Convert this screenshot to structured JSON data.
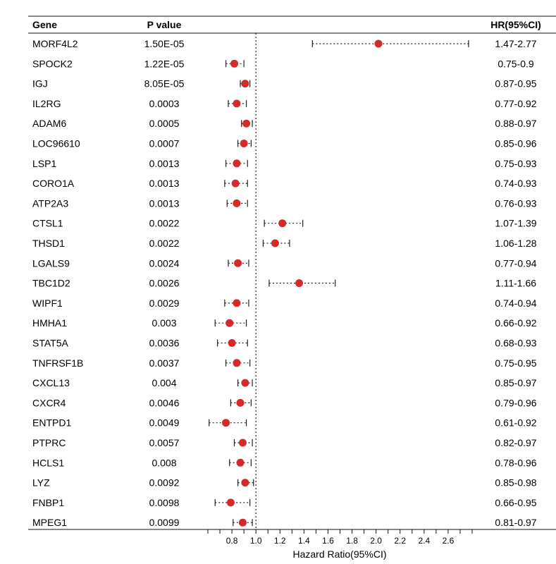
{
  "chart_data": {
    "type": "forest",
    "headers": {
      "gene": "Gene",
      "p": "P value",
      "hr": "HR(95%CI)"
    },
    "xlabel": "Hazard Ratio(95%CI)",
    "xticks": [
      "0.8",
      "1.0",
      "1.2",
      "1.4",
      "1.6",
      "1.8",
      "2.0",
      "2.2",
      "2.4",
      "2.6"
    ],
    "xlim": [
      0.6,
      2.8
    ],
    "reference_line": 1.0,
    "point_color": "#d42a2a",
    "rows": [
      {
        "gene": "MORF4L2",
        "p": "1.50E-05",
        "hr_text": "1.47-2.77",
        "hr": 2.02,
        "lo": 1.47,
        "hi": 2.77
      },
      {
        "gene": "SPOCK2",
        "p": "1.22E-05",
        "hr_text": "0.75-0.9",
        "hr": 0.82,
        "lo": 0.75,
        "hi": 0.9
      },
      {
        "gene": "IGJ",
        "p": "8.05E-05",
        "hr_text": "0.87-0.95",
        "hr": 0.91,
        "lo": 0.87,
        "hi": 0.95
      },
      {
        "gene": "IL2RG",
        "p": "0.0003",
        "hr_text": "0.77-0.92",
        "hr": 0.84,
        "lo": 0.77,
        "hi": 0.92
      },
      {
        "gene": "ADAM6",
        "p": "0.0005",
        "hr_text": "0.88-0.97",
        "hr": 0.92,
        "lo": 0.88,
        "hi": 0.97
      },
      {
        "gene": "LOC96610",
        "p": "0.0007",
        "hr_text": "0.85-0.96",
        "hr": 0.9,
        "lo": 0.85,
        "hi": 0.96
      },
      {
        "gene": "LSP1",
        "p": "0.0013",
        "hr_text": "0.75-0.93",
        "hr": 0.84,
        "lo": 0.75,
        "hi": 0.93
      },
      {
        "gene": "CORO1A",
        "p": "0.0013",
        "hr_text": "0.74-0.93",
        "hr": 0.83,
        "lo": 0.74,
        "hi": 0.93
      },
      {
        "gene": "ATP2A3",
        "p": "0.0013",
        "hr_text": "0.76-0.93",
        "hr": 0.84,
        "lo": 0.76,
        "hi": 0.93
      },
      {
        "gene": "CTSL1",
        "p": "0.0022",
        "hr_text": "1.07-1.39",
        "hr": 1.22,
        "lo": 1.07,
        "hi": 1.39
      },
      {
        "gene": "THSD1",
        "p": "0.0022",
        "hr_text": "1.06-1.28",
        "hr": 1.16,
        "lo": 1.06,
        "hi": 1.28
      },
      {
        "gene": "LGALS9",
        "p": "0.0024",
        "hr_text": "0.77-0.94",
        "hr": 0.85,
        "lo": 0.77,
        "hi": 0.94
      },
      {
        "gene": "TBC1D2",
        "p": "0.0026",
        "hr_text": "1.11-1.66",
        "hr": 1.36,
        "lo": 1.11,
        "hi": 1.66
      },
      {
        "gene": "WIPF1",
        "p": "0.0029",
        "hr_text": "0.74-0.94",
        "hr": 0.84,
        "lo": 0.74,
        "hi": 0.94
      },
      {
        "gene": "HMHA1",
        "p": "0.003",
        "hr_text": "0.66-0.92",
        "hr": 0.78,
        "lo": 0.66,
        "hi": 0.92
      },
      {
        "gene": "STAT5A",
        "p": "0.0036",
        "hr_text": "0.68-0.93",
        "hr": 0.8,
        "lo": 0.68,
        "hi": 0.93
      },
      {
        "gene": "TNFRSF1B",
        "p": "0.0037",
        "hr_text": "0.75-0.95",
        "hr": 0.84,
        "lo": 0.75,
        "hi": 0.95
      },
      {
        "gene": "CXCL13",
        "p": "0.004",
        "hr_text": "0.85-0.97",
        "hr": 0.91,
        "lo": 0.85,
        "hi": 0.97
      },
      {
        "gene": "CXCR4",
        "p": "0.0046",
        "hr_text": "0.79-0.96",
        "hr": 0.87,
        "lo": 0.79,
        "hi": 0.96
      },
      {
        "gene": "ENTPD1",
        "p": "0.0049",
        "hr_text": "0.61-0.92",
        "hr": 0.75,
        "lo": 0.61,
        "hi": 0.92
      },
      {
        "gene": "PTPRC",
        "p": "0.0057",
        "hr_text": "0.82-0.97",
        "hr": 0.89,
        "lo": 0.82,
        "hi": 0.97
      },
      {
        "gene": "HCLS1",
        "p": "0.008",
        "hr_text": "0.78-0.96",
        "hr": 0.87,
        "lo": 0.78,
        "hi": 0.96
      },
      {
        "gene": "LYZ",
        "p": "0.0092",
        "hr_text": "0.85-0.98",
        "hr": 0.91,
        "lo": 0.85,
        "hi": 0.98
      },
      {
        "gene": "FNBP1",
        "p": "0.0098",
        "hr_text": "0.66-0.95",
        "hr": 0.79,
        "lo": 0.66,
        "hi": 0.95
      },
      {
        "gene": "MPEG1",
        "p": "0.0099",
        "hr_text": "0.81-0.97",
        "hr": 0.89,
        "lo": 0.81,
        "hi": 0.97
      }
    ]
  }
}
